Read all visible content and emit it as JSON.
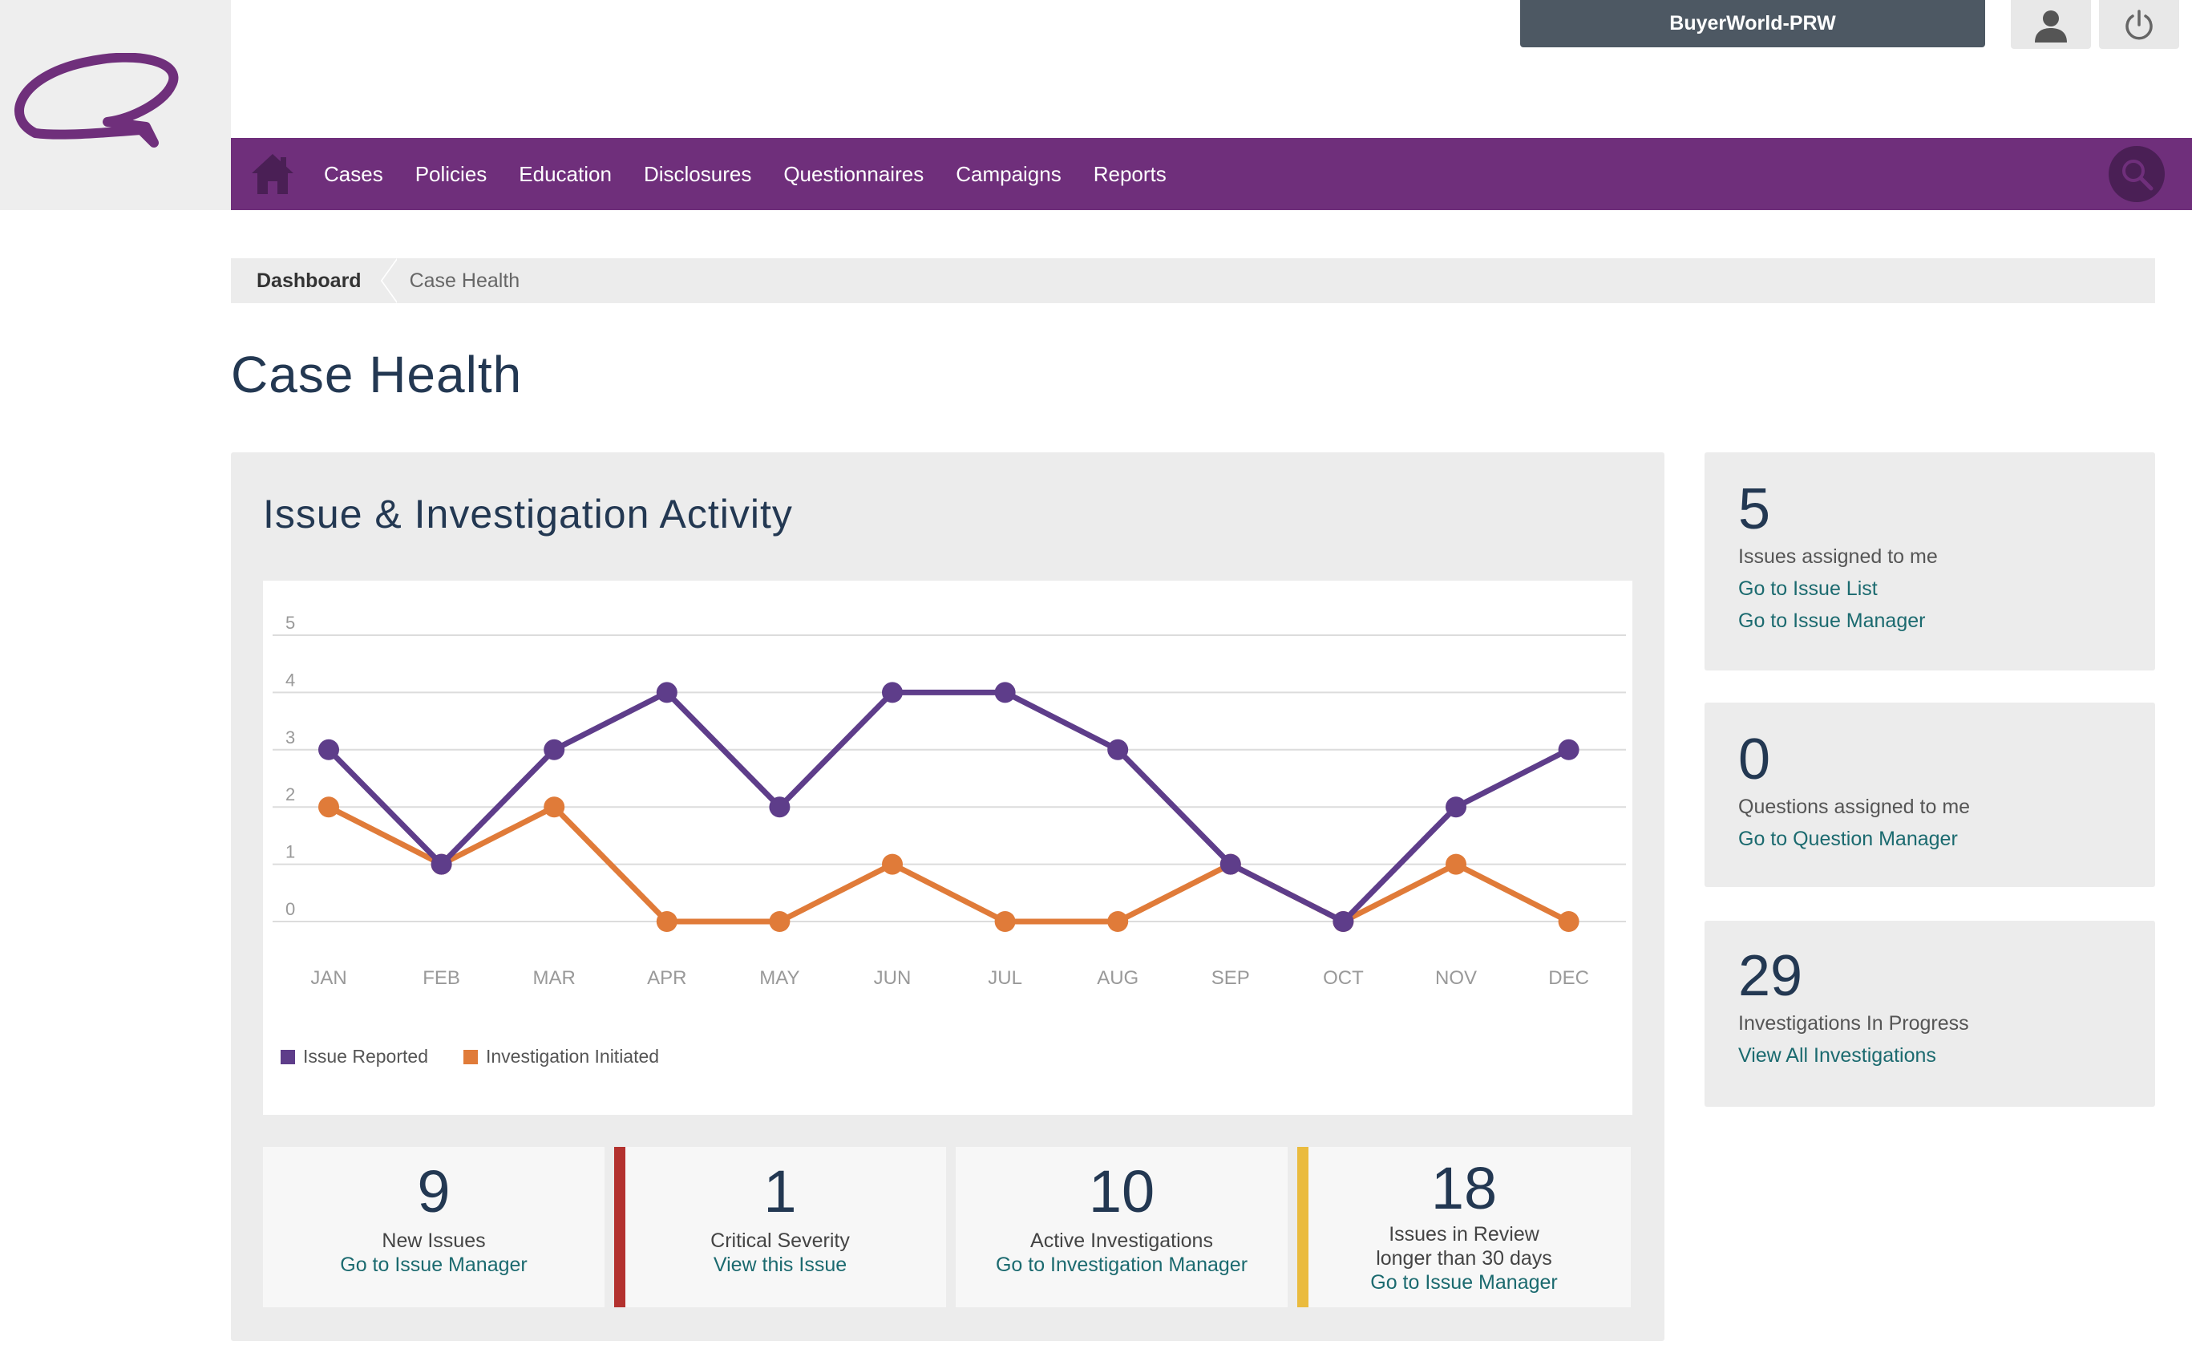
{
  "header": {
    "account_name": "BuyerWorld-PRW"
  },
  "nav": {
    "items": [
      "Cases",
      "Policies",
      "Education",
      "Disclosures",
      "Questionnaires",
      "Campaigns",
      "Reports"
    ]
  },
  "breadcrumb": {
    "parent": "Dashboard",
    "current": "Case Health"
  },
  "page_title": "Case Health",
  "activity": {
    "title": "Issue & Investigation Activity"
  },
  "chart_data": {
    "type": "line",
    "categories": [
      "JAN",
      "FEB",
      "MAR",
      "APR",
      "MAY",
      "JUN",
      "JUL",
      "AUG",
      "SEP",
      "OCT",
      "NOV",
      "DEC"
    ],
    "y_ticks": [
      "5",
      "4",
      "3",
      "2",
      "1",
      "0"
    ],
    "ylim": [
      0,
      5
    ],
    "grid": true,
    "legend_position": "bottom-left",
    "series": [
      {
        "name": "Issue Reported",
        "color": "#5e3d8a",
        "values": [
          3,
          1,
          3,
          4,
          2,
          4,
          4,
          3,
          1,
          0,
          2,
          3
        ]
      },
      {
        "name": "Investigation Initiated",
        "color": "#e07b39",
        "values": [
          2,
          1,
          2,
          0,
          0,
          1,
          0,
          0,
          1,
          0,
          1,
          0
        ]
      }
    ]
  },
  "stats": [
    {
      "value": "9",
      "label": "New Issues",
      "label2": "",
      "link": "Go to Issue Manager",
      "accent": ""
    },
    {
      "value": "1",
      "label": "Critical Severity",
      "label2": "",
      "link": "View this Issue",
      "accent": "#b3312e"
    },
    {
      "value": "10",
      "label": "Active Investigations",
      "label2": "",
      "link": "Go to Investigation Manager",
      "accent": ""
    },
    {
      "value": "18",
      "label": "Issues in Review",
      "label2": "longer than 30 days",
      "link": "Go to Issue Manager",
      "accent": "#eabb3e"
    }
  ],
  "side_cards": {
    "issues": {
      "count": "5",
      "label": "Issues assigned to me",
      "link1": "Go to Issue List",
      "link2": "Go to Issue Manager"
    },
    "questions": {
      "count": "0",
      "label": "Questions assigned to me",
      "link1": "Go to Question Manager"
    },
    "investigations": {
      "count": "29",
      "label": "Investigations In Progress",
      "link1": "View All Investigations"
    }
  },
  "colors": {
    "brand_purple": "#6f2f7b",
    "title_navy": "#233852",
    "link_teal": "#1b6a6f"
  },
  "icons": [
    "logo-icon",
    "user-icon",
    "power-icon",
    "home-icon",
    "search-icon"
  ]
}
